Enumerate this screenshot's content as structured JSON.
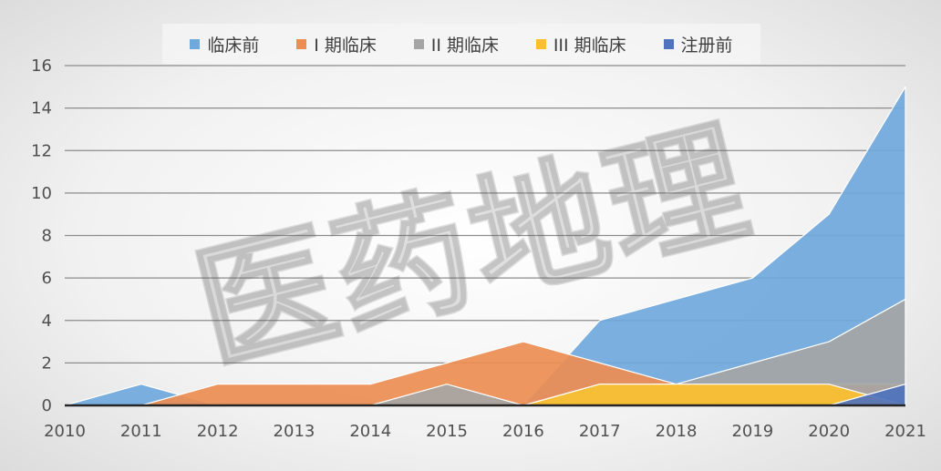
{
  "watermark": "医药地理",
  "chart_data": {
    "type": "area",
    "x": [
      "2010",
      "2011",
      "2012",
      "2013",
      "2014",
      "2015",
      "2016",
      "2017",
      "2018",
      "2019",
      "2020",
      "2021"
    ],
    "series": [
      {
        "name": "临床前",
        "color": "#6fa8dc",
        "values": [
          0,
          1,
          0,
          0,
          0,
          0,
          0,
          4,
          5,
          6,
          9,
          15
        ]
      },
      {
        "name": "I 期临床",
        "color": "#ed8d53",
        "values": [
          0,
          0,
          1,
          1,
          1,
          2,
          3,
          2,
          1,
          1,
          1,
          1
        ]
      },
      {
        "name": "II 期临床",
        "color": "#a5a5a5",
        "values": [
          0,
          0,
          0,
          0,
          0,
          1,
          0,
          1,
          1,
          2,
          3,
          5
        ]
      },
      {
        "name": "III 期临床",
        "color": "#fcc02d",
        "values": [
          0,
          0,
          0,
          0,
          0,
          0,
          0,
          1,
          1,
          1,
          1,
          0
        ]
      },
      {
        "name": "注册前",
        "color": "#4f72be",
        "values": [
          0,
          0,
          0,
          0,
          0,
          0,
          0,
          0,
          0,
          0,
          0,
          1
        ]
      }
    ],
    "yticks": [
      "0",
      "2",
      "4",
      "6",
      "8",
      "10",
      "12",
      "14",
      "16"
    ],
    "ylim": [
      0,
      16
    ],
    "grid": true,
    "legend_position": "top"
  }
}
